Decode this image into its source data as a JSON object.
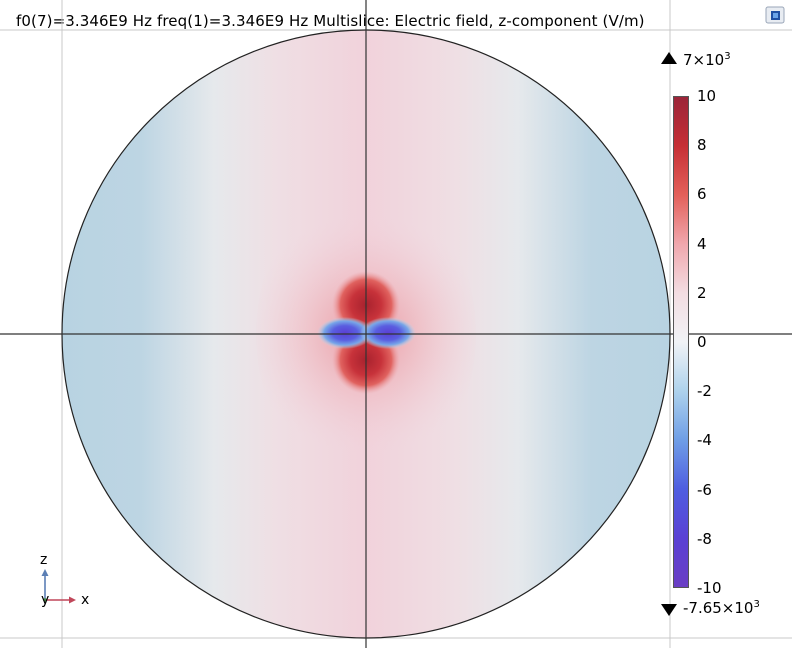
{
  "plot": {
    "title": "f0(7)=3.346E9 Hz freq(1)=3.346E9 Hz   Multislice: Electric field, z-component (V/m)"
  },
  "legend": {
    "max_value_label": "7×10",
    "max_value_exponent": "3",
    "min_value_label": "-7.65×10",
    "min_value_exponent": "3",
    "ticks": [
      "10",
      "8",
      "6",
      "4",
      "2",
      "0",
      "-2",
      "-4",
      "-6",
      "-8",
      "-10"
    ],
    "colorscale": [
      "#9b2539",
      "#c62f35",
      "#e3605a",
      "#f0a7ad",
      "#f3dde2",
      "#f1f3f6",
      "#aed2ec",
      "#6f9ee6",
      "#4f5ee0",
      "#5a41d4",
      "#6a3ec4"
    ]
  },
  "triad": {
    "vertical_axis": "z",
    "depth_axis": "y",
    "horizontal_axis": "x"
  },
  "toolbar": {
    "export_icon": "image-export-icon"
  }
}
